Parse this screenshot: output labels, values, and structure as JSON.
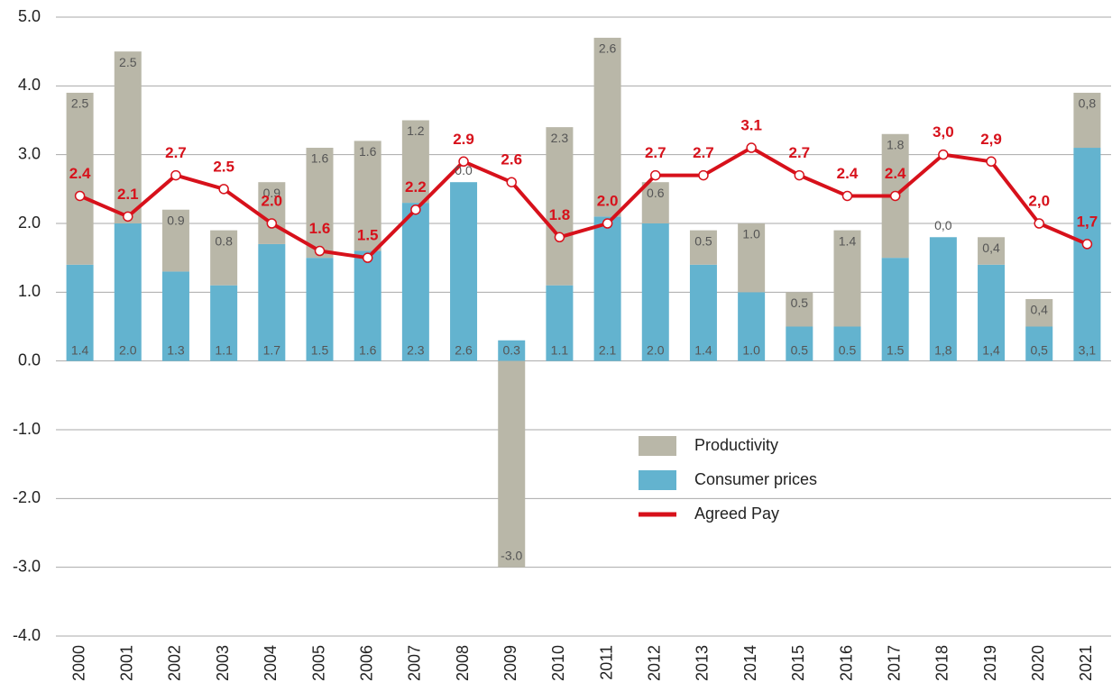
{
  "chart_data": {
    "type": "bar",
    "stacked": true,
    "grid": true,
    "categories": [
      "2000",
      "2001",
      "2002",
      "2003",
      "2004",
      "2005",
      "2006",
      "2007",
      "2008",
      "2009",
      "2010",
      "2011",
      "2012",
      "2013",
      "2014",
      "2015",
      "2016",
      "2017",
      "2018",
      "2019",
      "2020",
      "2021"
    ],
    "ylim": [
      -4,
      5
    ],
    "yticks": [
      {
        "value": -4,
        "label": "-4.0"
      },
      {
        "value": -3,
        "label": "-3.0"
      },
      {
        "value": -2,
        "label": "-2.0"
      },
      {
        "value": -1,
        "label": "-1.0"
      },
      {
        "value": 0,
        "label": "0.0"
      },
      {
        "value": 1,
        "label": "1.0"
      },
      {
        "value": 2,
        "label": "2.0"
      },
      {
        "value": 3,
        "label": "3.0"
      },
      {
        "value": 4,
        "label": "4.0"
      },
      {
        "value": 5,
        "label": "5.0"
      }
    ],
    "series": [
      {
        "name": "Consumer prices",
        "type": "bar",
        "color": "#63b3cf",
        "values": [
          1.4,
          2.0,
          1.3,
          1.1,
          1.7,
          1.5,
          1.6,
          2.3,
          2.6,
          0.3,
          1.1,
          2.1,
          2.0,
          1.4,
          1.0,
          0.5,
          0.5,
          1.5,
          1.8,
          1.4,
          0.5,
          3.1
        ],
        "value_labels": [
          "1.4",
          "2.0",
          "1.3",
          "1.1",
          "1.7",
          "1.5",
          "1.6",
          "2.3",
          "2.6",
          "0.3",
          "1.1",
          "2.1",
          "2.0",
          "1.4",
          "1.0",
          "0.5",
          "0.5",
          "1.5",
          "1,8",
          "1,4",
          "0,5",
          "3,1"
        ]
      },
      {
        "name": "Productivity",
        "type": "bar",
        "color": "#b9b7a8",
        "values": [
          2.5,
          2.5,
          0.9,
          0.8,
          0.9,
          1.6,
          1.6,
          1.2,
          0.0,
          -3.0,
          2.3,
          2.6,
          0.6,
          0.5,
          1.0,
          0.5,
          1.4,
          1.8,
          0.0,
          0.4,
          0.4,
          0.8
        ],
        "value_labels": [
          "2.5",
          "2.5",
          "0.9",
          "0.8",
          "0.9",
          "1.6",
          "1.6",
          "1.2",
          "0.0",
          "-3.0",
          "2.3",
          "2.6",
          "0.6",
          "0.5",
          "1.0",
          "0.5",
          "1.4",
          "1.8",
          "0,0",
          "0,4",
          "0,4",
          "0,8"
        ]
      },
      {
        "name": "Agreed Pay",
        "type": "line",
        "color": "#d7111b",
        "values": [
          2.4,
          2.1,
          2.7,
          2.5,
          2.0,
          1.6,
          1.5,
          2.2,
          2.9,
          2.6,
          1.8,
          2.0,
          2.7,
          2.7,
          3.1,
          2.7,
          2.4,
          2.4,
          3.0,
          2.9,
          2.0,
          1.7
        ],
        "value_labels": [
          "2.4",
          "2.1",
          "2.7",
          "2.5",
          "2.0",
          "1.6",
          "1.5",
          "2.2",
          "2.9",
          "2.6",
          "1.8",
          "2.0",
          "2.7",
          "2.7",
          "3.1",
          "2.7",
          "2.4",
          "2.4",
          "3,0",
          "2,9",
          "2,0",
          "1,7"
        ]
      }
    ],
    "legend_order": [
      1,
      0,
      2
    ]
  }
}
